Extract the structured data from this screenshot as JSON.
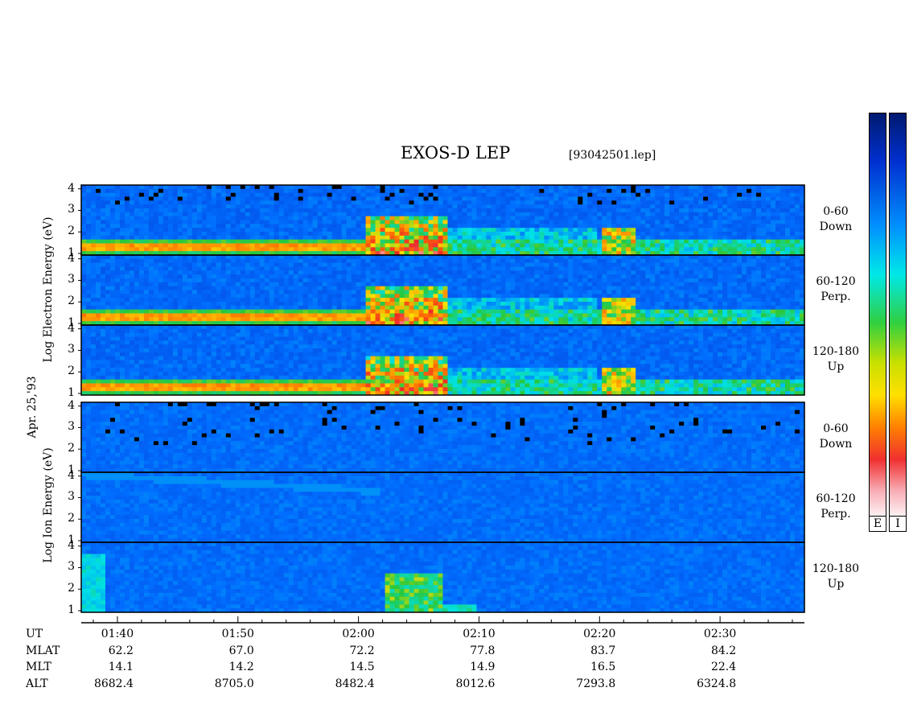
{
  "header": {
    "title": "EXOS-D LEP",
    "file": "[93042501.lep]"
  },
  "axis_labels": {
    "electron": "Log  Electron  Energy (eV)",
    "ion": "Log  Ion  Energy (eV)",
    "date": "Apr. 25,'93"
  },
  "chart_data": {
    "type": "heatmap",
    "instrument": "EXOS-D LEP",
    "date": "Apr. 25,'93",
    "x_ticks": [
      "01:40",
      "01:50",
      "02:00",
      "02:10",
      "02:20",
      "02:30"
    ],
    "y_ticks": [
      1,
      2,
      3,
      4
    ],
    "ylim": [
      1,
      4.1
    ],
    "panels": [
      {
        "species": "Electron",
        "pitch": "0-60",
        "direction": "Down"
      },
      {
        "species": "Electron",
        "pitch": "60-120",
        "direction": "Perp."
      },
      {
        "species": "Electron",
        "pitch": "120-180",
        "direction": "Up"
      },
      {
        "species": "Ion",
        "pitch": "0-60",
        "direction": "Down"
      },
      {
        "species": "Ion",
        "pitch": "60-120",
        "direction": "Perp."
      },
      {
        "species": "Ion",
        "pitch": "120-180",
        "direction": "Up"
      }
    ],
    "ephemeris": {
      "rows": [
        "UT",
        "MLAT",
        "MLT",
        "ALT"
      ],
      "UT": [
        "01:40",
        "01:50",
        "02:00",
        "02:10",
        "02:20",
        "02:30"
      ],
      "MLAT": [
        "62.2",
        "67.0",
        "72.2",
        "77.8",
        "83.7",
        "84.2"
      ],
      "MLT": [
        "14.1",
        "14.2",
        "14.5",
        "14.9",
        "16.5",
        "22.4"
      ],
      "ALT": [
        "8682.4",
        "8705.0",
        "8482.4",
        "8012.6",
        "7293.8",
        "6324.8"
      ]
    },
    "colorbars": [
      "E",
      "I"
    ],
    "colors": {
      "background": "#1a2fd0",
      "scale": [
        "#fbeaec",
        "#f04040",
        "#ff8000",
        "#ffe000",
        "#30c020",
        "#00e0e0",
        "#0060ff",
        "#001a70"
      ]
    }
  }
}
